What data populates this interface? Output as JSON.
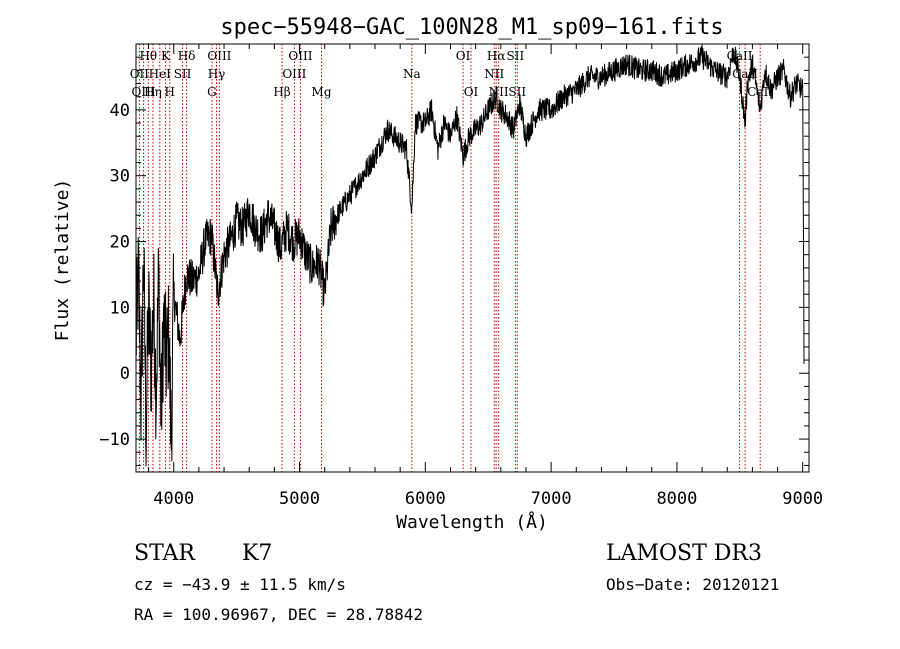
{
  "chart_data": {
    "type": "line",
    "title": "spec−55948−GAC_100N28_M1_sp09−161.fits",
    "xlabel": "Wavelength (Å)",
    "ylabel": "Flux (relative)",
    "xlim": [
      3700,
      9050
    ],
    "ylim": [
      -15,
      50
    ],
    "xticks": [
      4000,
      5000,
      6000,
      7000,
      8000,
      9000
    ],
    "yticks": [
      -10,
      0,
      10,
      20,
      30,
      40
    ],
    "series": [
      {
        "name": "flux",
        "x": [
          3700,
          3720,
          3740,
          3760,
          3780,
          3800,
          3820,
          3840,
          3860,
          3880,
          3900,
          3920,
          3940,
          3960,
          3980,
          4000,
          4050,
          4100,
          4150,
          4200,
          4250,
          4300,
          4350,
          4400,
          4450,
          4500,
          4550,
          4600,
          4650,
          4700,
          4750,
          4800,
          4850,
          4900,
          4950,
          5000,
          5050,
          5100,
          5150,
          5200,
          5250,
          5300,
          5400,
          5500,
          5600,
          5700,
          5800,
          5850,
          5893,
          5920,
          6000,
          6050,
          6100,
          6150,
          6200,
          6250,
          6300,
          6350,
          6400,
          6450,
          6500,
          6563,
          6600,
          6650,
          6700,
          6750,
          6800,
          6850,
          6900,
          7000,
          7100,
          7200,
          7300,
          7400,
          7500,
          7600,
          7700,
          7800,
          7900,
          8000,
          8100,
          8200,
          8300,
          8400,
          8450,
          8500,
          8542,
          8560,
          8600,
          8662,
          8700,
          8750,
          8800,
          8850,
          8900,
          8950,
          9000,
          9010
        ],
        "y": [
          5,
          15,
          -5,
          18,
          -8,
          10,
          0,
          12,
          -3,
          15,
          -7,
          8,
          2,
          6,
          -10,
          12,
          5,
          15,
          14,
          15,
          20,
          21,
          12,
          18,
          20,
          23,
          22,
          25,
          22,
          21,
          24,
          22,
          19,
          22,
          20,
          21,
          18,
          16,
          17,
          12,
          22,
          24,
          27,
          30,
          33,
          37,
          35,
          34,
          25,
          38,
          38,
          40,
          34,
          38,
          36,
          39,
          33,
          36,
          37,
          38,
          40,
          42,
          40,
          39,
          37,
          41,
          36,
          38,
          40,
          40,
          42,
          43,
          45,
          45,
          46,
          47,
          46,
          46,
          45,
          46,
          47,
          48,
          46,
          45,
          49,
          45,
          38,
          44,
          47,
          40,
          46,
          43,
          45,
          46,
          42,
          44,
          43,
          3
        ]
      }
    ],
    "lines": [
      {
        "label": "Hθ",
        "row": 1,
        "wavelength": 3798
      },
      {
        "label": "OII",
        "row": 2,
        "wavelength": 3727
      },
      {
        "label": "OIII",
        "row": 3,
        "wavelength": 3760
      },
      {
        "label": "Hη",
        "row": 3,
        "wavelength": 3835
      },
      {
        "label": "HeI",
        "row": 2,
        "wavelength": 3889
      },
      {
        "label": "K",
        "row": 1,
        "wavelength": 3934
      },
      {
        "label": "H",
        "row": 3,
        "wavelength": 3968
      },
      {
        "label": "SII",
        "row": 2,
        "wavelength": 4070
      },
      {
        "label": "Hδ",
        "row": 1,
        "wavelength": 4102
      },
      {
        "label": "G",
        "row": 3,
        "wavelength": 4304
      },
      {
        "label": "Hγ",
        "row": 2,
        "wavelength": 4340
      },
      {
        "label": "OIII",
        "row": 1,
        "wavelength": 4363
      },
      {
        "label": "Hβ",
        "row": 3,
        "wavelength": 4861
      },
      {
        "label": "OIII",
        "row": 2,
        "wavelength": 4959
      },
      {
        "label": "OIII",
        "row": 1,
        "wavelength": 5007
      },
      {
        "label": "Mg",
        "row": 3,
        "wavelength": 5175
      },
      {
        "label": "Na",
        "row": 2,
        "wavelength": 5893
      },
      {
        "label": "OI",
        "row": 1,
        "wavelength": 6300
      },
      {
        "label": "OI",
        "row": 3,
        "wavelength": 6363
      },
      {
        "label": "NII",
        "row": 2,
        "wavelength": 6548
      },
      {
        "label": "Hα",
        "row": 1,
        "wavelength": 6563
      },
      {
        "label": "NII",
        "row": 3,
        "wavelength": 6583
      },
      {
        "label": "SII",
        "row": 1,
        "wavelength": 6716
      },
      {
        "label": "SII",
        "row": 3,
        "wavelength": 6731
      },
      {
        "label": "CaII",
        "row": 1,
        "wavelength": 8498
      },
      {
        "label": "CaII",
        "row": 2,
        "wavelength": 8542
      },
      {
        "label": "CaII",
        "row": 3,
        "wavelength": 8662
      }
    ]
  },
  "info": {
    "class_label": "STAR",
    "subclass": "K7",
    "survey": "LAMOST DR3",
    "cz": "cz = −43.9 ± 11.5 km/s",
    "obs_date": "Obs−Date: 20120121",
    "coords": "RA = 100.96967, DEC =  28.78842"
  },
  "colors": {
    "spectrum": "#000000",
    "line_marker": "#cc0000",
    "axes": "#000000"
  }
}
